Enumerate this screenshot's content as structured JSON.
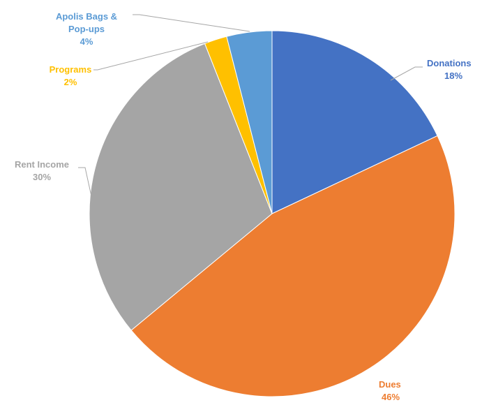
{
  "chart_data": {
    "type": "pie",
    "title": "",
    "start_angle_deg": 0,
    "direction": "clockwise",
    "slices": [
      {
        "label": "Donations",
        "value": 18,
        "value_label": "18%",
        "color": "#4472C4",
        "label_color": "#4472C4"
      },
      {
        "label": "Dues",
        "value": 46,
        "value_label": "46%",
        "color": "#ED7D31",
        "label_color": "#ED7D31"
      },
      {
        "label": "Rent Income",
        "value": 30,
        "value_label": "30%",
        "color": "#A5A5A5",
        "label_color": "#A5A5A5"
      },
      {
        "label": "Programs",
        "value": 2,
        "value_label": "2%",
        "color": "#FFC000",
        "label_color": "#FFC000"
      },
      {
        "label": "Apolis Bags &\nPop-ups",
        "value": 4,
        "value_label": "4%",
        "color": "#5B9BD5",
        "label_color": "#5B9BD5"
      }
    ],
    "legend": "none"
  }
}
